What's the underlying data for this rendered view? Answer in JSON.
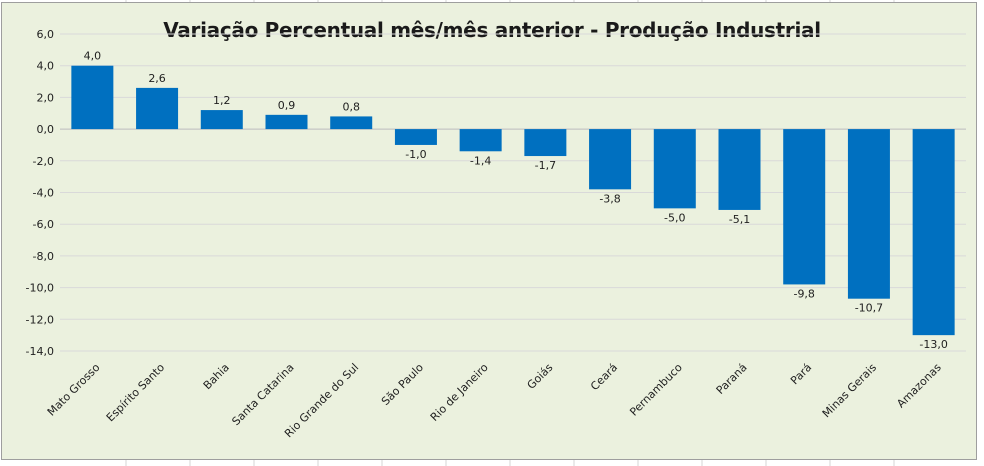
{
  "chart_data": {
    "type": "bar",
    "title": "Variação Percentual mês/mês anterior - Produção Industrial",
    "xlabel": "",
    "ylabel": "",
    "ylim": [
      -14,
      6
    ],
    "yticks": [
      "6,0",
      "4,0",
      "2,0",
      "0,0",
      "-2,0",
      "-4,0",
      "-6,0",
      "-8,0",
      "-10,0",
      "-12,0",
      "-14,0"
    ],
    "ytick_values": [
      6,
      4,
      2,
      0,
      -2,
      -4,
      -6,
      -8,
      -10,
      -12,
      -14
    ],
    "grid": true,
    "bar_color": "#0070c0",
    "categories": [
      "Mato Grosso",
      "Espírito Santo",
      "Bahia",
      "Santa Catarina",
      "Rio Grande do Sul",
      "São Paulo",
      "Rio de Janeiro",
      "Goiás",
      "Ceará",
      "Pernambuco",
      "Paraná",
      "Pará",
      "Minas Gerais",
      "Amazonas"
    ],
    "values": [
      4.0,
      2.6,
      1.2,
      0.9,
      0.8,
      -1.0,
      -1.4,
      -1.7,
      -3.8,
      -5.0,
      -5.1,
      -9.8,
      -10.7,
      -13.0
    ],
    "data_labels": [
      "4,0",
      "2,6",
      "1,2",
      "0,9",
      "0,8",
      "-1,0",
      "-1,4",
      "-1,7",
      "-3,8",
      "-5,0",
      "-5,1",
      "-9,8",
      "-10,7",
      "-13,0"
    ]
  }
}
